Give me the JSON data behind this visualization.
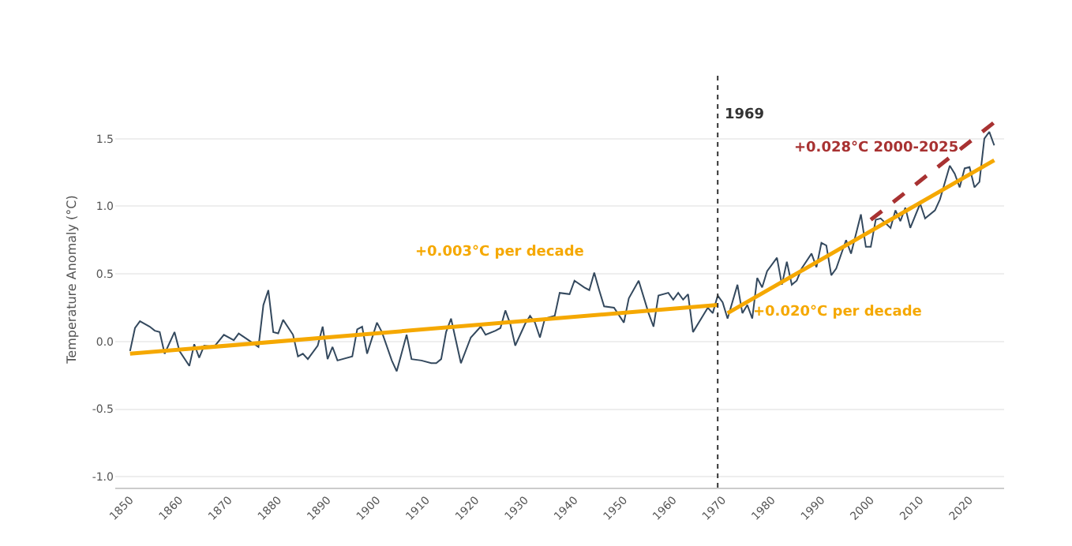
{
  "chart_data": {
    "type": "line",
    "ylabel": "Temperature Anomaly (°C)",
    "xlim": [
      1847,
      2027
    ],
    "xticks": [
      1850,
      1860,
      1870,
      1880,
      1890,
      1900,
      1910,
      1920,
      1930,
      1940,
      1950,
      1960,
      1970,
      1980,
      1990,
      2000,
      2010,
      2020
    ],
    "ylim": [
      -1.08,
      2.0
    ],
    "yticks": [
      {
        "value": -1.0,
        "label": "-1.0"
      },
      {
        "value": -0.5,
        "label": "-0.5"
      },
      {
        "value": 0.0,
        "label": "0.0"
      },
      {
        "value": 0.5,
        "label": "0.5"
      },
      {
        "value": 1.0,
        "label": "1.0"
      },
      {
        "value": 1.5,
        "label": "1.5"
      }
    ],
    "grid": "y",
    "marker": "none",
    "series": [
      {
        "color": "#34495e",
        "line_style": "solid",
        "x": [
          1850,
          1851,
          1852,
          1854,
          1855,
          1856,
          1857,
          1859,
          1860,
          1862,
          1863,
          1864,
          1865,
          1867,
          1869,
          1871,
          1872,
          1874,
          1876,
          1877,
          1878,
          1879,
          1880,
          1881,
          1883,
          1884,
          1885,
          1886,
          1888,
          1889,
          1890,
          1891,
          1892,
          1895,
          1896,
          1897,
          1898,
          1900,
          1901,
          1903,
          1904,
          1906,
          1907,
          1909,
          1911,
          1912,
          1913,
          1914,
          1915,
          1917,
          1919,
          1921,
          1922,
          1924,
          1925,
          1926,
          1927,
          1928,
          1930,
          1931,
          1932,
          1933,
          1934,
          1936,
          1937,
          1939,
          1940,
          1942,
          1943,
          1944,
          1945,
          1946,
          1948,
          1950,
          1951,
          1953,
          1955,
          1956,
          1957,
          1959,
          1960,
          1961,
          1962,
          1963,
          1964,
          1966,
          1967,
          1968,
          1969,
          1970,
          1971,
          1973,
          1974,
          1975,
          1976,
          1977,
          1978,
          1979,
          1981,
          1982,
          1983,
          1984,
          1985,
          1986,
          1988,
          1989,
          1990,
          1991,
          1992,
          1993,
          1995,
          1996,
          1998,
          1999,
          2000,
          2001,
          2002,
          2004,
          2005,
          2006,
          2007,
          2008,
          2010,
          2011,
          2013,
          2014,
          2016,
          2017,
          2018,
          2019,
          2020,
          2021,
          2022,
          2023,
          2024,
          2025
        ],
        "values": [
          -0.07,
          0.1,
          0.15,
          0.11,
          0.08,
          0.07,
          -0.09,
          0.07,
          -0.07,
          -0.18,
          -0.02,
          -0.12,
          -0.03,
          -0.04,
          0.05,
          0.01,
          0.06,
          0.01,
          -0.04,
          0.27,
          0.38,
          0.07,
          0.06,
          0.16,
          0.05,
          -0.11,
          -0.09,
          -0.13,
          -0.03,
          0.11,
          -0.13,
          -0.04,
          -0.14,
          -0.11,
          0.09,
          0.11,
          -0.09,
          0.14,
          0.07,
          -0.14,
          -0.22,
          0.05,
          -0.13,
          -0.14,
          -0.16,
          -0.16,
          -0.13,
          0.07,
          0.17,
          -0.16,
          0.03,
          0.11,
          0.05,
          0.08,
          0.1,
          0.23,
          0.13,
          -0.03,
          0.13,
          0.19,
          0.14,
          0.03,
          0.17,
          0.19,
          0.36,
          0.35,
          0.45,
          0.4,
          0.38,
          0.51,
          0.38,
          0.26,
          0.25,
          0.14,
          0.32,
          0.45,
          0.21,
          0.11,
          0.34,
          0.36,
          0.31,
          0.36,
          0.31,
          0.35,
          0.07,
          0.19,
          0.25,
          0.21,
          0.34,
          0.29,
          0.17,
          0.42,
          0.21,
          0.27,
          0.17,
          0.47,
          0.4,
          0.52,
          0.62,
          0.42,
          0.59,
          0.42,
          0.45,
          0.54,
          0.65,
          0.55,
          0.73,
          0.71,
          0.49,
          0.54,
          0.75,
          0.65,
          0.94,
          0.7,
          0.7,
          0.9,
          0.91,
          0.84,
          0.97,
          0.89,
          0.99,
          0.84,
          1.02,
          0.91,
          0.97,
          1.05,
          1.3,
          1.24,
          1.14,
          1.28,
          1.29,
          1.14,
          1.18,
          1.5,
          1.55,
          1.45
        ]
      },
      {
        "color": "#f5a800",
        "line_style": "solid",
        "x": [
          1850,
          1969
        ],
        "values": [
          -0.09,
          0.27
        ]
      },
      {
        "color": "#f5a800",
        "line_style": "solid",
        "x": [
          1971,
          2025
        ],
        "values": [
          0.21,
          1.34
        ]
      },
      {
        "color": "#a83232",
        "line_style": "dashed",
        "x": [
          2000,
          2025
        ],
        "values": [
          0.9,
          1.62
        ]
      }
    ],
    "ref_lines": [
      {
        "axis": "x",
        "value": 1969,
        "label": "1969",
        "color": "#333333",
        "line_style": "dotted"
      }
    ],
    "annotations": [
      "+0.003°C per decade",
      "+0.020°C per decade",
      "+0.028°C 2000-2025"
    ]
  }
}
